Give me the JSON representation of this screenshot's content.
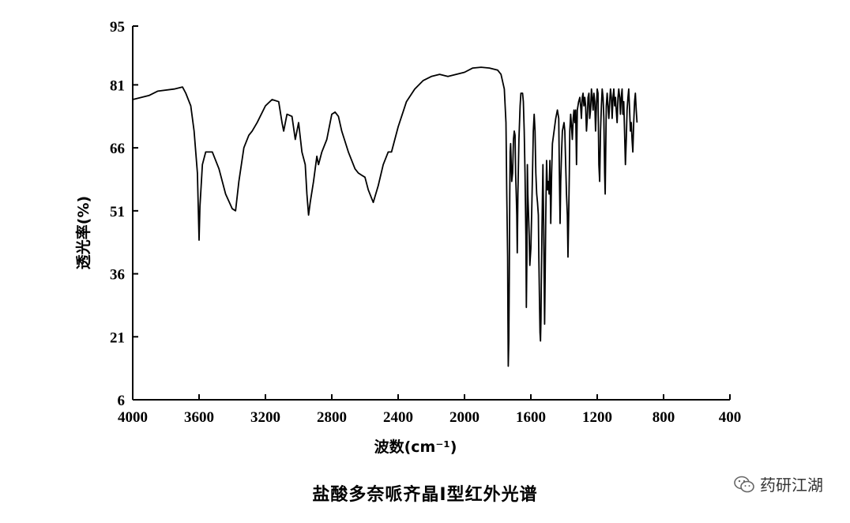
{
  "chart_data": {
    "type": "line",
    "title": "",
    "xlabel": "波数(cm⁻¹)",
    "ylabel": "透光率(%)",
    "xlim": [
      4000,
      400
    ],
    "ylim": [
      6,
      95
    ],
    "x_ticks": [
      4000,
      3600,
      3200,
      2800,
      2400,
      2000,
      1600,
      1200,
      800,
      400
    ],
    "y_ticks": [
      6,
      21,
      36,
      51,
      66,
      81,
      95
    ],
    "series": [
      {
        "name": "",
        "points": [
          [
            4000,
            77.5
          ],
          [
            3900,
            78.5
          ],
          [
            3850,
            79.5
          ],
          [
            3750,
            80
          ],
          [
            3700,
            80.5
          ],
          [
            3680,
            79
          ],
          [
            3650,
            76
          ],
          [
            3630,
            70
          ],
          [
            3610,
            60
          ],
          [
            3600,
            44
          ],
          [
            3595,
            52
          ],
          [
            3580,
            62
          ],
          [
            3560,
            65
          ],
          [
            3520,
            65
          ],
          [
            3480,
            61
          ],
          [
            3440,
            55
          ],
          [
            3400,
            51.5
          ],
          [
            3380,
            51
          ],
          [
            3360,
            58
          ],
          [
            3330,
            66
          ],
          [
            3300,
            69
          ],
          [
            3280,
            70
          ],
          [
            3250,
            72
          ],
          [
            3200,
            76
          ],
          [
            3160,
            77.5
          ],
          [
            3120,
            77
          ],
          [
            3100,
            72
          ],
          [
            3090,
            70
          ],
          [
            3070,
            74
          ],
          [
            3040,
            73.5
          ],
          [
            3020,
            68
          ],
          [
            3000,
            72
          ],
          [
            2980,
            65
          ],
          [
            2960,
            62
          ],
          [
            2950,
            55
          ],
          [
            2940,
            50
          ],
          [
            2930,
            53
          ],
          [
            2910,
            58
          ],
          [
            2890,
            64
          ],
          [
            2880,
            62
          ],
          [
            2860,
            65
          ],
          [
            2830,
            68
          ],
          [
            2800,
            74
          ],
          [
            2780,
            74.5
          ],
          [
            2760,
            73.5
          ],
          [
            2740,
            70
          ],
          [
            2700,
            65
          ],
          [
            2660,
            61
          ],
          [
            2640,
            60
          ],
          [
            2620,
            59.5
          ],
          [
            2600,
            59
          ],
          [
            2580,
            56
          ],
          [
            2560,
            54
          ],
          [
            2550,
            53
          ],
          [
            2520,
            57
          ],
          [
            2490,
            62
          ],
          [
            2460,
            65
          ],
          [
            2440,
            65
          ],
          [
            2400,
            71
          ],
          [
            2350,
            77
          ],
          [
            2300,
            80
          ],
          [
            2250,
            82
          ],
          [
            2200,
            83
          ],
          [
            2150,
            83.5
          ],
          [
            2100,
            83
          ],
          [
            2050,
            83.5
          ],
          [
            2000,
            84
          ],
          [
            1950,
            85
          ],
          [
            1900,
            85.2
          ],
          [
            1850,
            85
          ],
          [
            1800,
            84.5
          ],
          [
            1780,
            83.5
          ],
          [
            1760,
            80
          ],
          [
            1750,
            72
          ],
          [
            1745,
            55
          ],
          [
            1740,
            40
          ],
          [
            1738,
            25
          ],
          [
            1736,
            14
          ],
          [
            1733,
            20
          ],
          [
            1730,
            35
          ],
          [
            1727,
            55
          ],
          [
            1725,
            65
          ],
          [
            1722,
            67
          ],
          [
            1718,
            62
          ],
          [
            1715,
            58
          ],
          [
            1710,
            60
          ],
          [
            1705,
            68
          ],
          [
            1700,
            70
          ],
          [
            1695,
            69
          ],
          [
            1692,
            60
          ],
          [
            1688,
            55
          ],
          [
            1685,
            50
          ],
          [
            1682,
            41
          ],
          [
            1678,
            55
          ],
          [
            1672,
            68
          ],
          [
            1665,
            76
          ],
          [
            1660,
            79
          ],
          [
            1650,
            79
          ],
          [
            1645,
            77
          ],
          [
            1640,
            70
          ],
          [
            1635,
            60
          ],
          [
            1630,
            45
          ],
          [
            1627,
            28
          ],
          [
            1624,
            40
          ],
          [
            1621,
            62
          ],
          [
            1618,
            55
          ],
          [
            1614,
            50
          ],
          [
            1610,
            45
          ],
          [
            1606,
            38
          ],
          [
            1600,
            42
          ],
          [
            1595,
            50
          ],
          [
            1590,
            60
          ],
          [
            1585,
            70
          ],
          [
            1580,
            74
          ],
          [
            1575,
            70
          ],
          [
            1570,
            60
          ],
          [
            1565,
            55
          ],
          [
            1560,
            53
          ],
          [
            1555,
            50
          ],
          [
            1552,
            40
          ],
          [
            1550,
            35
          ],
          [
            1548,
            30
          ],
          [
            1545,
            22
          ],
          [
            1542,
            20
          ],
          [
            1539,
            25
          ],
          [
            1535,
            40
          ],
          [
            1530,
            55
          ],
          [
            1527,
            62
          ],
          [
            1523,
            48
          ],
          [
            1520,
            35
          ],
          [
            1517,
            24
          ],
          [
            1514,
            35
          ],
          [
            1510,
            50
          ],
          [
            1505,
            63
          ],
          [
            1500,
            56
          ],
          [
            1495,
            58
          ],
          [
            1490,
            55
          ],
          [
            1485,
            63
          ],
          [
            1480,
            48
          ],
          [
            1475,
            60
          ],
          [
            1470,
            67
          ],
          [
            1460,
            70
          ],
          [
            1450,
            73
          ],
          [
            1440,
            75
          ],
          [
            1432,
            73
          ],
          [
            1428,
            60
          ],
          [
            1424,
            48
          ],
          [
            1420,
            58
          ],
          [
            1415,
            65
          ],
          [
            1410,
            70
          ],
          [
            1400,
            72
          ],
          [
            1395,
            70
          ],
          [
            1390,
            62
          ],
          [
            1385,
            55
          ],
          [
            1380,
            50
          ],
          [
            1376,
            40
          ],
          [
            1372,
            50
          ],
          [
            1368,
            60
          ],
          [
            1365,
            70
          ],
          [
            1360,
            74
          ],
          [
            1355,
            71
          ],
          [
            1350,
            68
          ],
          [
            1345,
            73
          ],
          [
            1340,
            75
          ],
          [
            1335,
            72
          ],
          [
            1330,
            75
          ],
          [
            1325,
            62
          ],
          [
            1320,
            75
          ],
          [
            1312,
            77
          ],
          [
            1305,
            78
          ],
          [
            1300,
            76
          ],
          [
            1295,
            73
          ],
          [
            1290,
            78
          ],
          [
            1285,
            79
          ],
          [
            1280,
            76
          ],
          [
            1275,
            78
          ],
          [
            1270,
            76
          ],
          [
            1265,
            70
          ],
          [
            1260,
            73
          ],
          [
            1255,
            78
          ],
          [
            1250,
            79
          ],
          [
            1245,
            73
          ],
          [
            1240,
            75
          ],
          [
            1235,
            80
          ],
          [
            1230,
            78
          ],
          [
            1225,
            75
          ],
          [
            1220,
            79
          ],
          [
            1215,
            77
          ],
          [
            1210,
            70
          ],
          [
            1205,
            76
          ],
          [
            1200,
            80
          ],
          [
            1195,
            79
          ],
          [
            1190,
            62
          ],
          [
            1185,
            58
          ],
          [
            1180,
            70
          ],
          [
            1175,
            76
          ],
          [
            1170,
            80
          ],
          [
            1165,
            78
          ],
          [
            1160,
            73
          ],
          [
            1155,
            60
          ],
          [
            1152,
            55
          ],
          [
            1148,
            67
          ],
          [
            1145,
            76
          ],
          [
            1140,
            79
          ],
          [
            1135,
            76
          ],
          [
            1130,
            73
          ],
          [
            1125,
            77
          ],
          [
            1120,
            80
          ],
          [
            1115,
            78
          ],
          [
            1110,
            73
          ],
          [
            1105,
            78
          ],
          [
            1100,
            80
          ],
          [
            1095,
            76
          ],
          [
            1090,
            78
          ],
          [
            1085,
            75
          ],
          [
            1080,
            72
          ],
          [
            1075,
            78
          ],
          [
            1070,
            80
          ],
          [
            1065,
            78
          ],
          [
            1060,
            74
          ],
          [
            1055,
            78
          ],
          [
            1050,
            80
          ],
          [
            1045,
            74
          ],
          [
            1040,
            77
          ],
          [
            1035,
            70
          ],
          [
            1030,
            62
          ],
          [
            1025,
            68
          ],
          [
            1020,
            75
          ],
          [
            1015,
            78
          ],
          [
            1010,
            80
          ],
          [
            1005,
            75
          ],
          [
            1000,
            70
          ],
          [
            995,
            72
          ],
          [
            990,
            68
          ],
          [
            985,
            65
          ],
          [
            980,
            72
          ],
          [
            975,
            77
          ],
          [
            970,
            79
          ],
          [
            965,
            75
          ],
          [
            960,
            72
          ]
        ]
      }
    ],
    "caption": "盐酸多奈哌齐晶Ⅰ型红外光谱"
  },
  "watermark": {
    "icon": "wechat-icon",
    "text": "药研江湖"
  }
}
